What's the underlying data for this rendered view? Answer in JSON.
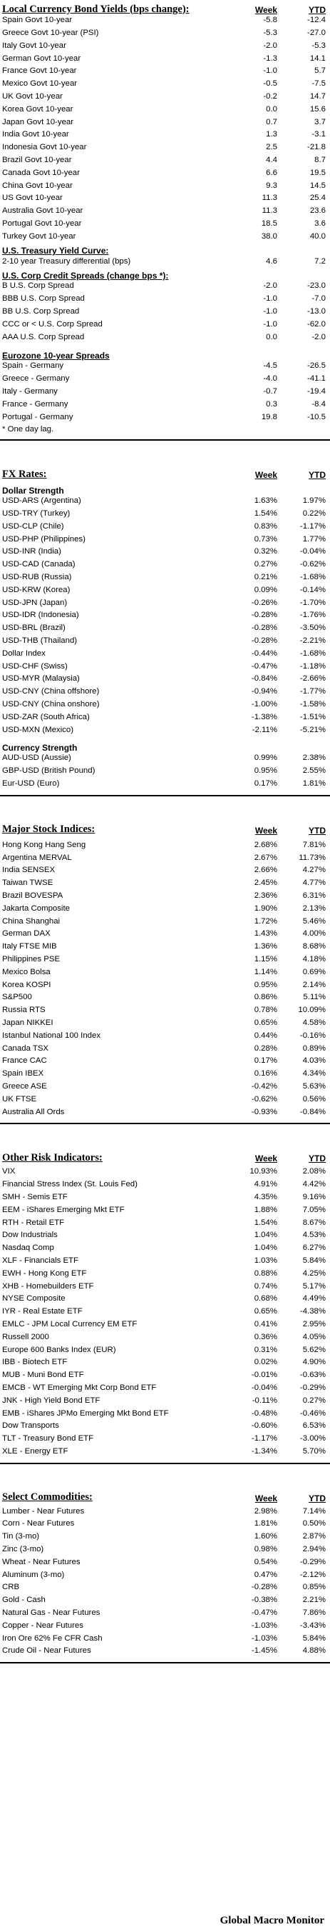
{
  "bonds": {
    "title": "Local Currency Bond Yields (bps change):",
    "col_week": "Week",
    "col_ytd": "YTD",
    "rows": [
      [
        "Spain Govt 10-year",
        "-5.8",
        "-12.4"
      ],
      [
        "Greece Govt 10-year (PSI)",
        "-5.3",
        "-27.0"
      ],
      [
        "Italy Govt 10-year",
        "-2.0",
        "-5.3"
      ],
      [
        "German Govt 10-year",
        "-1.3",
        "14.1"
      ],
      [
        "France Govt 10-year",
        "-1.0",
        "5.7"
      ],
      [
        "Mexico Govt 10-year",
        "-0.5",
        "-7.5"
      ],
      [
        "UK Govt 10-year",
        "-0.2",
        "14.7"
      ],
      [
        "Korea Govt 10-year",
        "0.0",
        "15.6"
      ],
      [
        "Japan Govt 10-year",
        "0.7",
        "3.7"
      ],
      [
        "India Govt 10-year",
        "1.3",
        "-3.1"
      ],
      [
        "Indonesia Govt 10-year",
        "2.5",
        "-21.8"
      ],
      [
        "Brazil Govt 10-year",
        "4.4",
        "8.7"
      ],
      [
        "Canada Govt 10-year",
        "6.6",
        "19.5"
      ],
      [
        "China Govt 10-year",
        "9.3",
        "14.5"
      ],
      [
        "US Govt 10-year",
        "11.3",
        "25.4"
      ],
      [
        "Australia Govt 10-year",
        "11.3",
        "23.6"
      ],
      [
        "Portugal Govt 10-year",
        "18.5",
        "3.6"
      ],
      [
        "Turkey Govt 10-year",
        "38.0",
        "40.0"
      ]
    ],
    "curve_head": "U.S. Treasury Yield Curve:",
    "curve_rows": [
      [
        "2-10 year Treasury differential (bps)",
        "4.6",
        "7.2"
      ]
    ],
    "credit_head": "U.S. Corp Credit Spreads (change bps *):",
    "credit_rows": [
      [
        "B U.S. Corp Spread",
        "-2.0",
        "-23.0"
      ],
      [
        "BBB U.S. Corp Spread",
        "-1.0",
        "-7.0"
      ],
      [
        "BB U.S. Corp Spread",
        "-1.0",
        "-13.0"
      ],
      [
        "CCC or < U.S. Corp Spread",
        "-1.0",
        "-62.0"
      ],
      [
        "AAA U.S. Corp Spread",
        "0.0",
        "-2.0"
      ]
    ],
    "euro_head": "Eurozone 10-year Spreads",
    "euro_rows": [
      [
        "Spain - Germany",
        "-4.5",
        "-26.5"
      ],
      [
        "Greece - Germany",
        "-4.0",
        "-41.1"
      ],
      [
        "Italy - Germany",
        "-0.7",
        "-19.4"
      ],
      [
        "France - Germany",
        "0.3",
        "-8.4"
      ],
      [
        "Portugal - Germany",
        "19.8",
        "-10.5"
      ]
    ],
    "note": "* One day lag."
  },
  "fx": {
    "title": "FX Rates:",
    "col_week": "Week",
    "col_ytd": "YTD",
    "strength_head": "Dollar Strength",
    "strength_rows": [
      [
        "USD-ARS (Argentina)",
        "1.63%",
        "1.97%"
      ],
      [
        "USD-TRY (Turkey)",
        "1.54%",
        "0.22%"
      ],
      [
        "USD-CLP (Chile)",
        "0.83%",
        "-1.17%"
      ],
      [
        "USD-PHP (Philippines)",
        "0.73%",
        "1.77%"
      ],
      [
        "USD-INR (India)",
        "0.32%",
        "-0.04%"
      ],
      [
        "USD-CAD (Canada)",
        "0.27%",
        "-0.62%"
      ],
      [
        "USD-RUB (Russia)",
        "0.21%",
        "-1.68%"
      ],
      [
        "USD-KRW (Korea)",
        "0.09%",
        "-0.14%"
      ],
      [
        "USD-JPN (Japan)",
        "-0.26%",
        "-1.70%"
      ],
      [
        "USD-IDR (Indonesia)",
        "-0.28%",
        "-1.76%"
      ],
      [
        "USD-BRL (Brazil)",
        "-0.28%",
        "-3.50%"
      ],
      [
        "USD-THB (Thailand)",
        "-0.28%",
        "-2.21%"
      ],
      [
        "Dollar Index",
        "-0.44%",
        "-1.68%"
      ],
      [
        "USD-CHF (Swiss)",
        "-0.47%",
        "-1.18%"
      ],
      [
        "USD-MYR (Malaysia)",
        "-0.84%",
        "-2.66%"
      ],
      [
        "USD-CNY (China offshore)",
        "-0.94%",
        "-1.77%"
      ],
      [
        "USD-CNY (China onshore)",
        "-1.00%",
        "-1.58%"
      ],
      [
        "USD-ZAR (South Africa)",
        "-1.38%",
        "-1.51%"
      ],
      [
        "USD-MXN (Mexico)",
        "-2.11%",
        "-5.21%"
      ]
    ],
    "currency_head": "Currency Strength",
    "currency_rows": [
      [
        "AUD-USD (Aussie)",
        "0.99%",
        "2.38%"
      ],
      [
        "GBP-USD (British Pound)",
        "0.95%",
        "2.55%"
      ],
      [
        "Eur-USD (Euro)",
        "0.17%",
        "1.81%"
      ]
    ]
  },
  "stocks": {
    "title": "Major Stock Indices:",
    "col_week": "Week",
    "col_ytd": "YTD",
    "rows": [
      [
        "Hong Kong Hang Seng",
        "2.68%",
        "7.81%"
      ],
      [
        "Argentina MERVAL",
        "2.67%",
        "11.73%"
      ],
      [
        "India SENSEX",
        "2.66%",
        "4.27%"
      ],
      [
        "Taiwan TWSE",
        "2.45%",
        "4.77%"
      ],
      [
        "Brazil BOVESPA",
        "2.36%",
        "6.31%"
      ],
      [
        "Jakarta Composite",
        "1.90%",
        "2.13%"
      ],
      [
        "China Shanghai",
        "1.72%",
        "5.46%"
      ],
      [
        "German DAX",
        "1.43%",
        "4.00%"
      ],
      [
        "Italy FTSE MIB",
        "1.36%",
        "8.68%"
      ],
      [
        "Philippines PSE",
        "1.15%",
        "4.18%"
      ],
      [
        "Mexico Bolsa",
        "1.14%",
        "0.69%"
      ],
      [
        "Korea KOSPI",
        "0.95%",
        "2.14%"
      ],
      [
        "S&P500",
        "0.86%",
        "5.11%"
      ],
      [
        "Russia RTS",
        "0.78%",
        "10.09%"
      ],
      [
        "Japan NIKKEI",
        "0.65%",
        "4.58%"
      ],
      [
        "Istanbul National 100 Index",
        "0.44%",
        "-0.16%"
      ],
      [
        "Canada TSX",
        "0.28%",
        "0.89%"
      ],
      [
        "France CAC",
        "0.17%",
        "4.03%"
      ],
      [
        "Spain IBEX",
        "0.16%",
        "4.34%"
      ],
      [
        "Greece ASE",
        "-0.42%",
        "5.63%"
      ],
      [
        "UK FTSE",
        "-0.62%",
        "0.56%"
      ],
      [
        "Australia All Ords",
        "-0.93%",
        "-0.84%"
      ]
    ]
  },
  "risk": {
    "title": "Other Risk Indicators:",
    "col_week": "Week",
    "col_ytd": "YTD",
    "rows": [
      [
        "VIX",
        "10.93%",
        "2.08%"
      ],
      [
        "Financial Stress Index (St. Louis Fed)",
        "4.91%",
        "4.42%"
      ],
      [
        "SMH - Semis ETF",
        "4.35%",
        "9.16%"
      ],
      [
        "EEM - iShares Emerging Mkt ETF",
        "1.88%",
        "7.05%"
      ],
      [
        "RTH - Retail ETF",
        "1.54%",
        "8.67%"
      ],
      [
        "Dow Industrials",
        "1.04%",
        "4.53%"
      ],
      [
        "Nasdaq Comp",
        "1.04%",
        "6.27%"
      ],
      [
        "XLF - Financials ETF",
        "1.03%",
        "5.84%"
      ],
      [
        "EWH - Hong Kong ETF",
        "0.88%",
        "4.25%"
      ],
      [
        "XHB - Homebuilders ETF",
        "0.74%",
        "5.17%"
      ],
      [
        "NYSE Composite",
        "0.68%",
        "4.49%"
      ],
      [
        "IYR - Real Estate ETF",
        "0.65%",
        "-4.38%"
      ],
      [
        "EMLC - JPM Local Currency EM ETF",
        "0.41%",
        "2.95%"
      ],
      [
        "Russell 2000",
        "0.36%",
        "4.05%"
      ],
      [
        "Europe 600 Banks Index (EUR)",
        "0.31%",
        "5.62%"
      ],
      [
        "IBB - Biotech ETF",
        "0.02%",
        "4.90%"
      ],
      [
        "MUB - Muni Bond ETF",
        "-0.01%",
        "-0.63%"
      ],
      [
        "EMCB - WT Emerging Mkt Corp Bond ETF",
        "-0.04%",
        "-0.29%"
      ],
      [
        "JNK - High Yield Bond ETF",
        "-0.11%",
        "0.27%"
      ],
      [
        "EMB - iShares JPMo Emerging Mkt Bond ETF",
        "-0.48%",
        "-0.46%"
      ],
      [
        "Dow Transports",
        "-0.60%",
        "6.53%"
      ],
      [
        "TLT - Treasury Bond ETF",
        "-1.17%",
        "-3.00%"
      ],
      [
        "XLE - Energy ETF",
        "-1.34%",
        "5.70%"
      ]
    ]
  },
  "commodities": {
    "title": "Select Commodities:",
    "col_week": "Week",
    "col_ytd": "YTD",
    "rows": [
      [
        "Lumber - Near Futures",
        "2.98%",
        "7.14%"
      ],
      [
        "Corn - Near Futures",
        "1.81%",
        "0.50%"
      ],
      [
        "Tin (3-mo)",
        "1.60%",
        "2.87%"
      ],
      [
        "Zinc (3-mo)",
        "0.98%",
        "2.94%"
      ],
      [
        "Wheat - Near Futures",
        "0.54%",
        "-0.29%"
      ],
      [
        "Aluminum (3-mo)",
        "0.47%",
        "-2.12%"
      ],
      [
        "CRB",
        "-0.28%",
        "0.85%"
      ],
      [
        "Gold - Cash",
        "-0.38%",
        "2.21%"
      ],
      [
        "Natural Gas - Near Futures",
        "-0.47%",
        "7.86%"
      ],
      [
        "Copper - Near Futures",
        "-1.03%",
        "-3.43%"
      ],
      [
        "Iron Ore 62% Fe CFR Cash",
        "-1.03%",
        "5.84%"
      ],
      [
        "Crude Oil - Near Futures",
        "-1.45%",
        "4.88%"
      ]
    ]
  },
  "footer": "Global Macro Monitor"
}
